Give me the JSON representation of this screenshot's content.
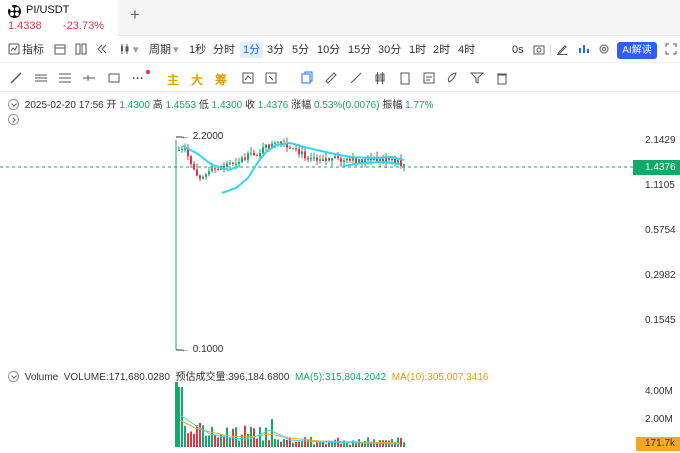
{
  "tab": {
    "symbol": "PI/USDT",
    "price": "1.4338",
    "change": "-23.73%"
  },
  "toolbar": {
    "indicators": "指标",
    "period": "周期",
    "intervals": [
      "1秒",
      "分时",
      "1分",
      "3分",
      "5分",
      "10分",
      "15分",
      "30分",
      "1时",
      "2时",
      "4时"
    ],
    "active_interval": "1分",
    "latency": "0s",
    "ai_label": "AI解读"
  },
  "drawing_tools": {
    "labels": [
      "主",
      "大",
      "筹"
    ]
  },
  "ohlc": {
    "datetime": "2025-02-20 17:56",
    "open_label": "开",
    "open": "1.4300",
    "high_label": "高",
    "high": "1.4553",
    "low_label": "低",
    "low": "1.4300",
    "close_label": "收",
    "close": "1.4376",
    "change_label": "涨幅",
    "change": "0.53%(0.0076)",
    "amp_label": "振幅",
    "amp": "1.77%"
  },
  "price_axis": {
    "ticks": [
      "2.1429",
      "1.1105",
      "0.5754",
      "0.2982",
      "0.1545"
    ],
    "current": "1.4376",
    "high_marker": "2.2000",
    "low_marker": "0.1000"
  },
  "volume": {
    "label": "Volume",
    "volume_text": "VOLUME:171,680.0280",
    "estimate_text": "预估成交量:396,184.6800",
    "ma5_text": "MA(5):315,804.2042",
    "ma10_text": "MA(10):305,007.3416",
    "ticks": [
      "4.00M",
      "2.00M"
    ],
    "current": "171.7k"
  },
  "colors": {
    "up": "#14a86a",
    "down": "#e0364a",
    "ma_cyan": "#33d6f0",
    "ma_orange": "#f5a623",
    "accent": "#1a6cff"
  }
}
